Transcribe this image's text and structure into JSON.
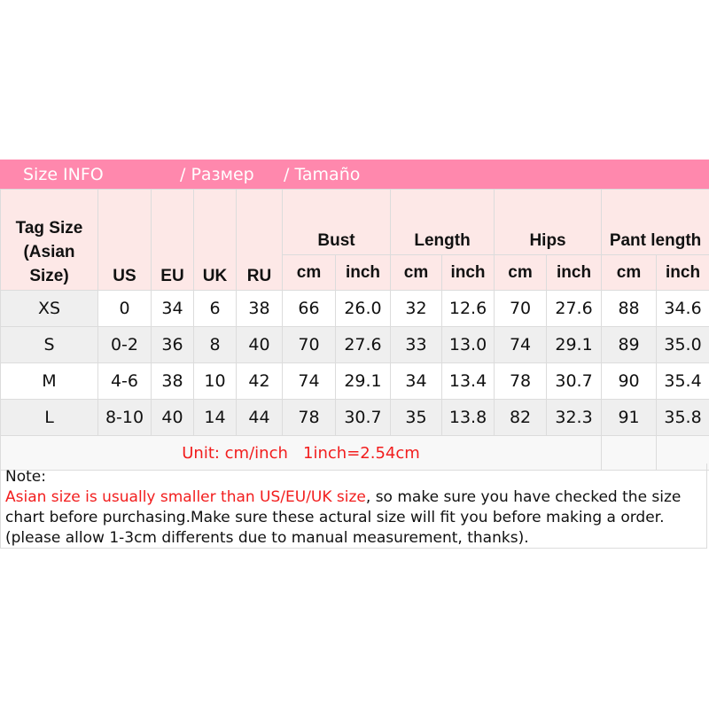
{
  "banner": {
    "title": "Size INFO",
    "ru": "/  Размер",
    "es": "/  Tamaño",
    "color": "#ff88ad"
  },
  "header": {
    "tag": "Tag Size (Asian Size)",
    "us": "US",
    "eu": "EU",
    "uk": "UK",
    "ru": "RU",
    "bust": "Bust",
    "length": "Length",
    "hips": "Hips",
    "pant": "Pant length",
    "cm": "cm",
    "inch": "inch"
  },
  "rows": [
    [
      "XS",
      "0",
      "34",
      "6",
      "38",
      "66",
      "26.0",
      "32",
      "12.6",
      "70",
      "27.6",
      "88",
      "34.6"
    ],
    [
      "S",
      "0-2",
      "36",
      "8",
      "40",
      "70",
      "27.6",
      "33",
      "13.0",
      "74",
      "29.1",
      "89",
      "35.0"
    ],
    [
      "M",
      "4-6",
      "38",
      "10",
      "42",
      "74",
      "29.1",
      "34",
      "13.4",
      "78",
      "30.7",
      "90",
      "35.4"
    ],
    [
      "L",
      "8-10",
      "40",
      "14",
      "44",
      "78",
      "30.7",
      "35",
      "13.8",
      "82",
      "32.3",
      "91",
      "35.8"
    ]
  ],
  "unit": "Unit: cm/inch   1inch=2.54cm",
  "note": {
    "label": "Note:",
    "red": "Asian size is usually smaller than US/EU/UK size",
    "rest": ", so make sure you have checked the size chart before purchasing.Make sure these actural size will fit you before making a order.(please allow 1-3cm differents due to manual measurement, thanks)."
  }
}
